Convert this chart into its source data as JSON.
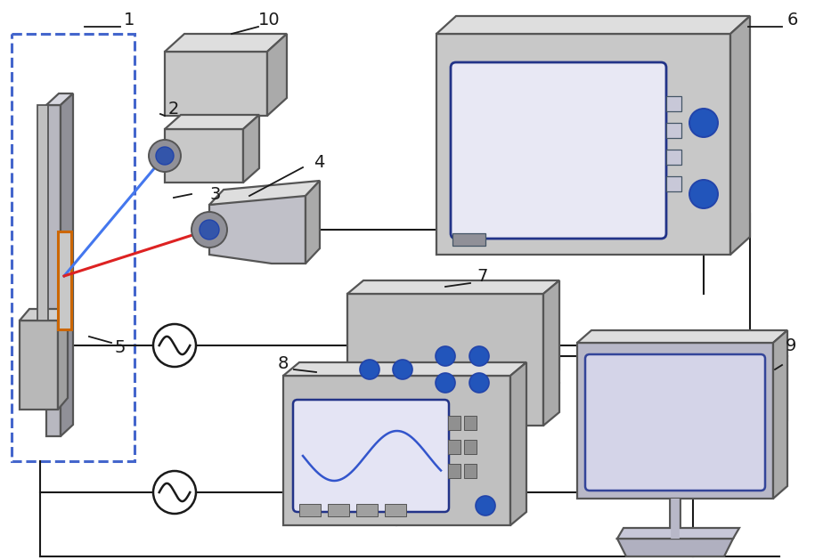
{
  "bg": "#ffffff",
  "lc": "#1a1a1a",
  "de": "#555555",
  "df": "#c8c8c8",
  "df2": "#c0c0c8",
  "top_f": "#dedede",
  "side_f": "#aaaaaa",
  "bd": "#2255bb",
  "scr_f": "#e8e8f4",
  "scr_e": "#223388",
  "mon_f": "#b8b8c8",
  "wlw": 1.5,
  "blw": 1.6,
  "lfs": 14,
  "dashed_color": "#4466cc"
}
